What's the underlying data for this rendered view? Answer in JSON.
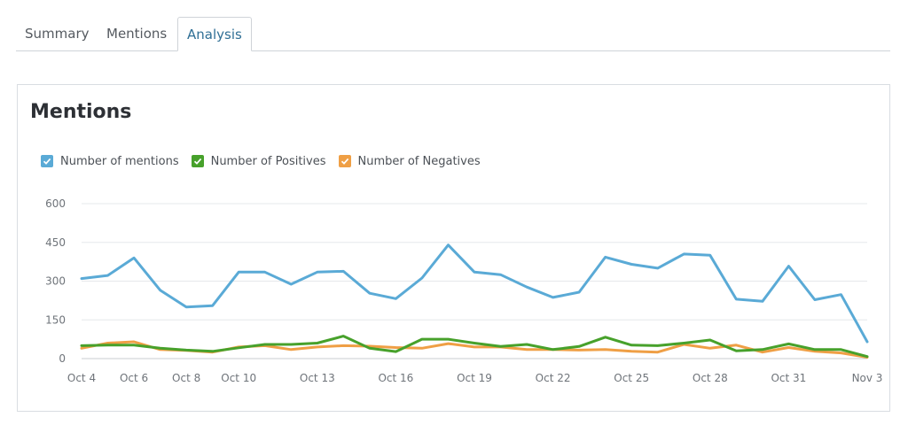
{
  "tabs": [
    {
      "label": "Summary"
    },
    {
      "label": "Mentions"
    },
    {
      "label": "Analysis"
    }
  ],
  "active_tab": "Analysis",
  "panel": {
    "title": "Mentions"
  },
  "legend": [
    {
      "label": "Number of mentions",
      "color": "#5aaad6"
    },
    {
      "label": "Number of Positives",
      "color": "#47a12b"
    },
    {
      "label": "Number of Negatives",
      "color": "#ef9f45"
    }
  ],
  "chart_data": {
    "type": "line",
    "x": [
      "Oct 4",
      "Oct 5",
      "Oct 6",
      "Oct 7",
      "Oct 8",
      "Oct 9",
      "Oct 10",
      "Oct 11",
      "Oct 12",
      "Oct 13",
      "Oct 14",
      "Oct 15",
      "Oct 16",
      "Oct 17",
      "Oct 18",
      "Oct 19",
      "Oct 20",
      "Oct 21",
      "Oct 22",
      "Oct 23",
      "Oct 24",
      "Oct 25",
      "Oct 26",
      "Oct 27",
      "Oct 28",
      "Oct 29",
      "Oct 30",
      "Oct 31",
      "Nov 1",
      "Nov 2",
      "Nov 3"
    ],
    "x_tick_labels": [
      "Oct 4",
      "Oct 6",
      "Oct 8",
      "Oct 10",
      "Oct 13",
      "Oct 16",
      "Oct 19",
      "Oct 22",
      "Oct 25",
      "Oct 28",
      "Oct 31",
      "Nov 3"
    ],
    "x_tick_indices": [
      0,
      2,
      4,
      6,
      9,
      12,
      15,
      18,
      21,
      24,
      27,
      30
    ],
    "y_ticks": [
      0,
      150,
      300,
      450,
      600
    ],
    "ylim": [
      0,
      600
    ],
    "grid": true,
    "legend_position": "top-left",
    "series": [
      {
        "name": "Number of mentions",
        "color": "#5aaad6",
        "values": [
          310,
          322,
          390,
          265,
          200,
          205,
          335,
          335,
          288,
          335,
          338,
          253,
          232,
          312,
          440,
          335,
          325,
          277,
          237,
          257,
          393,
          365,
          350,
          405,
          400,
          230,
          222,
          358,
          228,
          248,
          65
        ]
      },
      {
        "name": "Number of Positives",
        "color": "#47a12b",
        "values": [
          50,
          52,
          52,
          40,
          33,
          28,
          42,
          55,
          55,
          60,
          87,
          40,
          27,
          75,
          75,
          60,
          47,
          55,
          35,
          47,
          83,
          52,
          50,
          60,
          72,
          30,
          35,
          57,
          35,
          35,
          8
        ]
      },
      {
        "name": "Number of Negatives",
        "color": "#ef9f45",
        "values": [
          40,
          60,
          65,
          35,
          32,
          25,
          45,
          50,
          35,
          45,
          50,
          48,
          43,
          40,
          58,
          45,
          45,
          35,
          35,
          33,
          35,
          28,
          25,
          55,
          40,
          52,
          25,
          43,
          28,
          22,
          5
        ]
      }
    ]
  }
}
